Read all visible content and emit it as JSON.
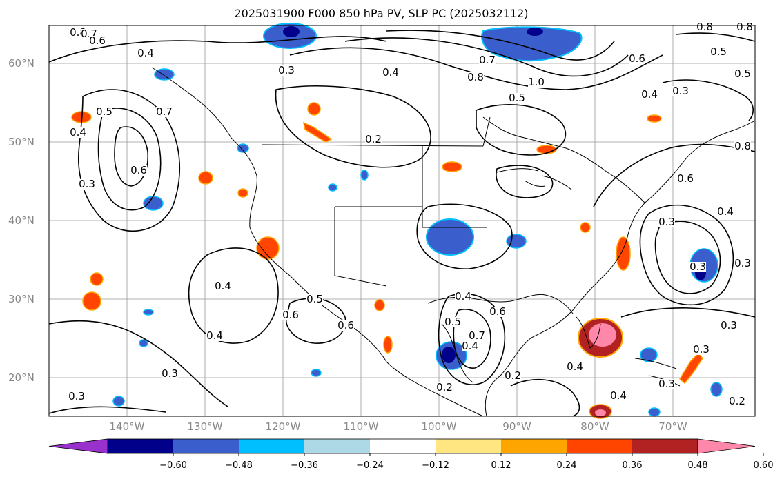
{
  "title": "2025031900 F000 850 hPa PV, SLP PC (2025032112)",
  "map": {
    "lat_labels": [
      "60°N",
      "50°N",
      "40°N",
      "30°N",
      "20°N"
    ],
    "lon_labels": [
      "140°W",
      "130°W",
      "120°W",
      "110°W",
      "100°W",
      "90°W",
      "80°W",
      "70°W"
    ],
    "contour_labels": [
      "0.8",
      "0.7",
      "0.6",
      "0.8",
      "0.5",
      "0.8",
      "0.4",
      "0.3",
      "0.4",
      "0.7",
      "0.8",
      "1.0",
      "0.5",
      "0.6",
      "0.4",
      "0.3",
      "0.5",
      "0.4",
      "0.7",
      "0.6",
      "0.3",
      "0.2",
      "0.5",
      "0.8",
      "0.4",
      "0.6",
      "0.3",
      "0.4",
      "0.5",
      "0.6",
      "0.4",
      "0.3",
      "0.4",
      "0.5",
      "0.6",
      "0.7",
      "0.4",
      "0.2",
      "0.2",
      "0.4",
      "0.3",
      "0.3",
      "0.3",
      "0.2",
      "0.3",
      "0.3",
      "0.3",
      "0.4",
      "0.6"
    ],
    "colors": {
      "coast": "#000000",
      "grid": "#999999",
      "contour": "#000000"
    }
  },
  "colorbar": {
    "ticks": [
      "−0.60",
      "−0.48",
      "−0.36",
      "−0.24",
      "−0.12",
      "0.12",
      "0.24",
      "0.36",
      "0.48",
      "0.60"
    ],
    "colors": [
      "#9932cc",
      "#00008b",
      "#3a5fcd",
      "#00bfff",
      "#add8e6",
      "#ffffff",
      "#ffe680",
      "#ffa500",
      "#ff4500",
      "#b22222",
      "#ff88aa"
    ]
  }
}
